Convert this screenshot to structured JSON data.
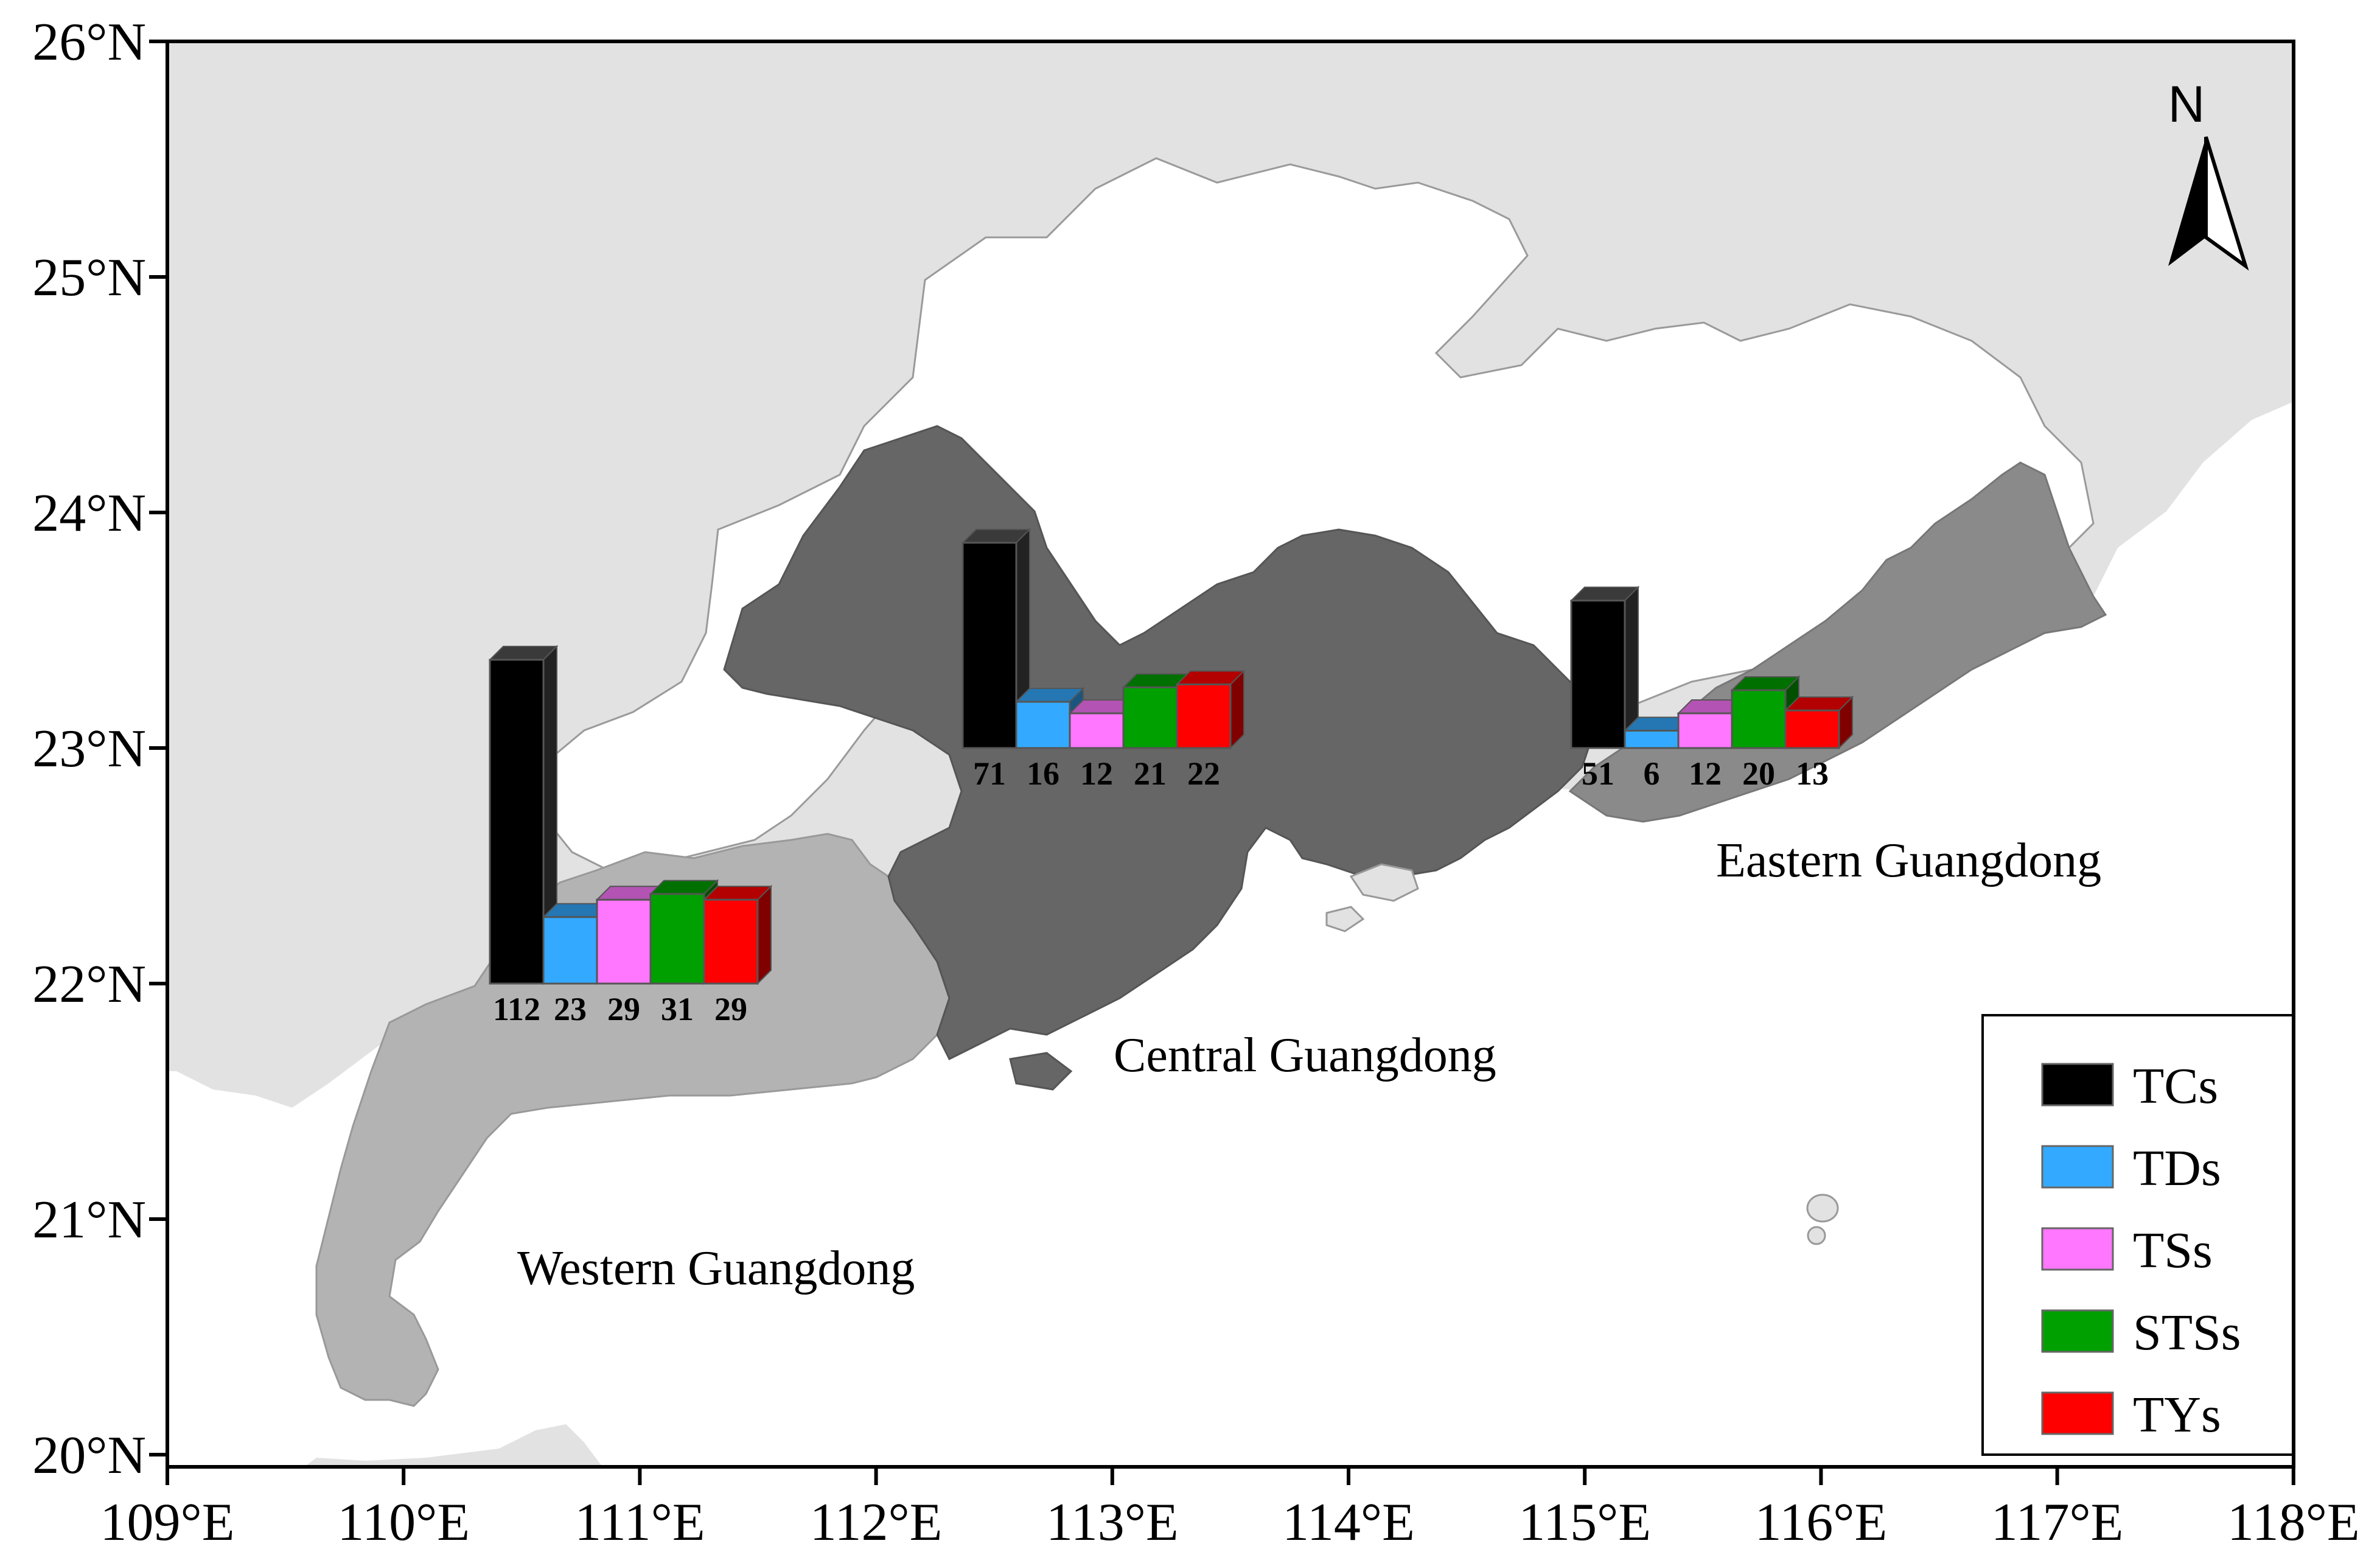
{
  "map": {
    "north_label": "N",
    "y_axis_labels": [
      "26°N",
      "25°N",
      "24°N",
      "23°N",
      "22°N",
      "21°N",
      "20°N"
    ],
    "x_axis_labels": [
      "109°E",
      "110°E",
      "111°E",
      "112°E",
      "113°E",
      "114°E",
      "115°E",
      "116°E",
      "117°E",
      "118°E"
    ],
    "regions": [
      {
        "label": "Western Guangdong",
        "color": "#b3b3b3"
      },
      {
        "label": "Central Guangdong",
        "color": "#666666"
      },
      {
        "label": "Eastern Guangdong",
        "color": "#8a8a8a"
      }
    ],
    "colors": {
      "land_outside": "#e2e2e2",
      "guangdong_other": "#ffffff",
      "sea": "#ffffff"
    }
  },
  "chart_data": {
    "type": "bar",
    "categories": [
      "TCs",
      "TDs",
      "TSs",
      "STSs",
      "TYs"
    ],
    "colors": [
      "#000000",
      "#33aaff",
      "#ff77ff",
      "#00a000",
      "#ff0000"
    ],
    "groups": [
      {
        "region": "Western Guangdong",
        "values": [
          112,
          23,
          29,
          31,
          29
        ]
      },
      {
        "region": "Central Guangdong",
        "values": [
          71,
          16,
          12,
          21,
          22
        ]
      },
      {
        "region": "Eastern Guangdong",
        "values": [
          51,
          6,
          12,
          20,
          13
        ]
      }
    ]
  },
  "legend": {
    "items": [
      {
        "label": "TCs",
        "color": "#000000"
      },
      {
        "label": "TDs",
        "color": "#33aaff"
      },
      {
        "label": "TSs",
        "color": "#ff77ff"
      },
      {
        "label": "STSs",
        "color": "#00a000"
      },
      {
        "label": "TYs",
        "color": "#ff0000"
      }
    ]
  }
}
